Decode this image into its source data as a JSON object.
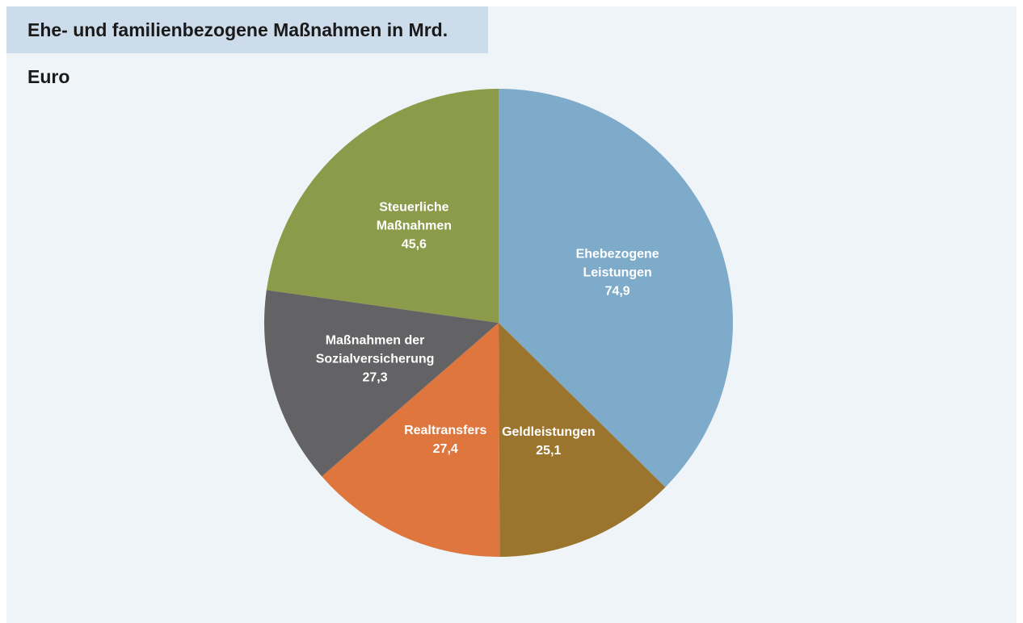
{
  "chart_data": {
    "type": "pie",
    "title": "Ehe- und familienbezogene Maßnahmen in Mrd. Euro",
    "categories": [
      "Ehebezogene Leistungen",
      "Geldleistungen",
      "Realtransfers",
      "Maßnahmen der Sozialversicherung",
      "Steuerliche Maßnahmen"
    ],
    "values": [
      74.9,
      25.1,
      27.4,
      27.3,
      45.6
    ],
    "value_labels": [
      "74,9",
      "25,1",
      "27,4",
      "27,3",
      "45,6"
    ],
    "colors": [
      "#7fabca",
      "#9b752d",
      "#df763e",
      "#636264",
      "#8b9b4a"
    ]
  }
}
